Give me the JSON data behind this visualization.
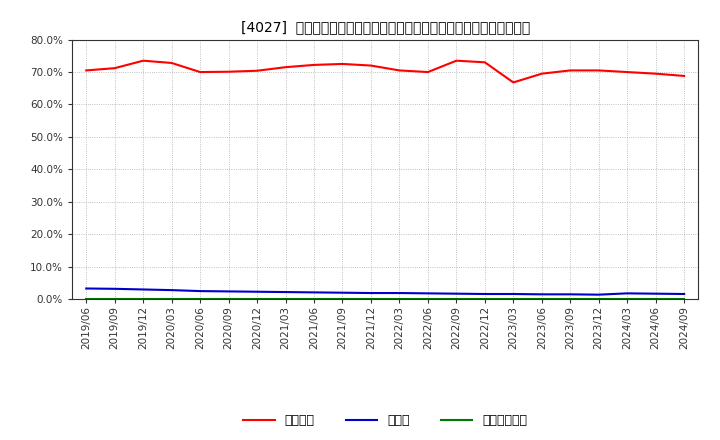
{
  "title": "[4027]  自己資本、のれん、繰延税金資産の総資産に対する比率の推移",
  "background_color": "#ffffff",
  "plot_bg_color": "#ffffff",
  "grid_color": "#999999",
  "x_labels": [
    "2019/06",
    "2019/09",
    "2019/12",
    "2020/03",
    "2020/06",
    "2020/09",
    "2020/12",
    "2021/03",
    "2021/06",
    "2021/09",
    "2021/12",
    "2022/03",
    "2022/06",
    "2022/09",
    "2022/12",
    "2023/03",
    "2023/06",
    "2023/09",
    "2023/12",
    "2024/03",
    "2024/06",
    "2024/09"
  ],
  "jikoshihon": [
    70.5,
    71.2,
    73.5,
    72.8,
    70.0,
    70.1,
    70.4,
    71.5,
    72.2,
    72.5,
    72.0,
    70.5,
    70.0,
    73.5,
    73.0,
    66.8,
    69.5,
    70.5,
    70.5,
    70.0,
    69.5,
    68.8
  ],
  "noren": [
    3.3,
    3.2,
    3.0,
    2.8,
    2.5,
    2.4,
    2.3,
    2.2,
    2.1,
    2.0,
    1.9,
    1.9,
    1.8,
    1.7,
    1.6,
    1.6,
    1.5,
    1.5,
    1.4,
    1.8,
    1.7,
    1.6
  ],
  "kurinobe": [
    0.1,
    0.1,
    0.1,
    0.1,
    0.1,
    0.1,
    0.1,
    0.1,
    0.1,
    0.1,
    0.1,
    0.1,
    0.1,
    0.1,
    0.1,
    0.1,
    0.1,
    0.1,
    0.1,
    0.1,
    0.1,
    0.1
  ],
  "jikoshihon_color": "#ff0000",
  "noren_color": "#0000cc",
  "kurinobe_color": "#007700",
  "legend_labels": [
    "自己資本",
    "のれん",
    "繰延税金資産"
  ],
  "ylim": [
    0.0,
    80.0
  ],
  "yticks": [
    0.0,
    10.0,
    20.0,
    30.0,
    40.0,
    50.0,
    60.0,
    70.0,
    80.0
  ]
}
